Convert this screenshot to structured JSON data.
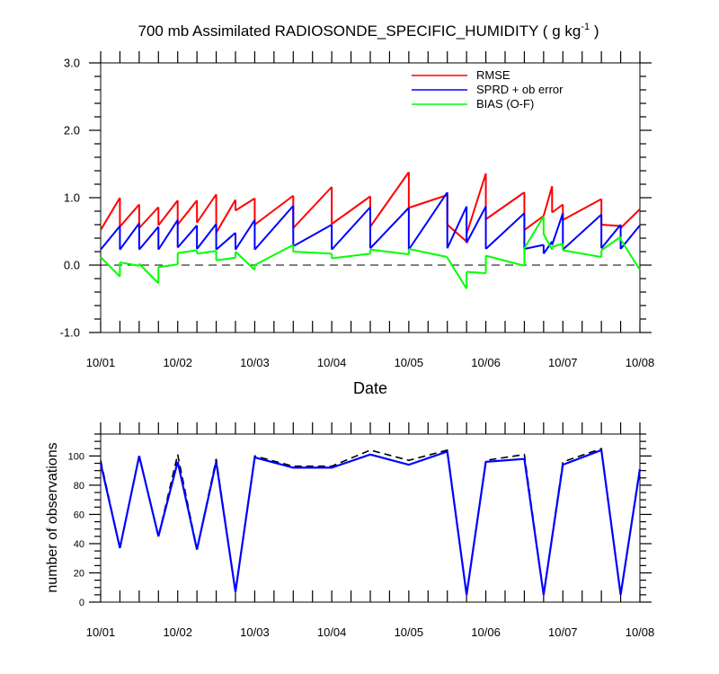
{
  "chart_data": [
    {
      "type": "line",
      "title": "700 mb Assimilated RADIOSONDE_SPECIFIC_HUMIDITY ( g kg",
      "title_super": "-1",
      "title_tail": " )",
      "xlabel": "Date",
      "ylabel": "",
      "ylim": [
        -1.0,
        3.0
      ],
      "yticks": [
        "-1.0",
        "0.0",
        "1.0",
        "2.0",
        "3.0"
      ],
      "xticks": [
        "10/01",
        "10/02",
        "10/03",
        "10/04",
        "10/05",
        "10/06",
        "10/07",
        "10/08"
      ],
      "xlim": [
        0,
        7
      ],
      "reference_line": 0.0,
      "legend": "top-right",
      "series": [
        {
          "name": "RMSE",
          "color": "#ff0000",
          "segments": [
            [
              [
                0.0,
                0.52
              ],
              [
                0.25,
                1.0
              ]
            ],
            [
              [
                0.25,
                0.57
              ],
              [
                0.5,
                0.9
              ]
            ],
            [
              [
                0.5,
                0.55
              ],
              [
                0.75,
                0.86
              ]
            ],
            [
              [
                0.75,
                0.59
              ],
              [
                1.0,
                0.96
              ]
            ],
            [
              [
                1.0,
                0.6
              ],
              [
                1.25,
                0.96
              ]
            ],
            [
              [
                1.25,
                0.63
              ],
              [
                1.5,
                1.05
              ]
            ],
            [
              [
                1.5,
                0.48
              ],
              [
                1.75,
                0.97
              ]
            ],
            [
              [
                1.75,
                0.81
              ],
              [
                2.0,
                0.99
              ]
            ],
            [
              [
                2.0,
                0.6
              ],
              [
                2.5,
                1.03
              ]
            ],
            [
              [
                2.5,
                0.55
              ],
              [
                3.0,
                1.16
              ]
            ],
            [
              [
                3.0,
                0.61
              ],
              [
                3.5,
                1.02
              ]
            ],
            [
              [
                3.5,
                0.57
              ],
              [
                4.0,
                1.38
              ]
            ],
            [
              [
                4.0,
                0.85
              ],
              [
                4.5,
                1.04
              ]
            ],
            [
              [
                4.5,
                0.6
              ],
              [
                4.75,
                0.35
              ]
            ],
            [
              [
                4.75,
                0.46
              ],
              [
                5.0,
                1.36
              ]
            ],
            [
              [
                5.0,
                0.68
              ],
              [
                5.5,
                1.08
              ]
            ],
            [
              [
                5.5,
                0.52
              ],
              [
                5.75,
                0.73
              ]
            ],
            [
              [
                5.75,
                0.73
              ],
              [
                5.86,
                1.17
              ]
            ],
            [
              [
                5.86,
                0.78
              ],
              [
                6.0,
                0.9
              ]
            ],
            [
              [
                6.0,
                0.67
              ],
              [
                6.5,
                0.98
              ]
            ],
            [
              [
                6.5,
                0.6
              ],
              [
                6.75,
                0.58
              ]
            ],
            [
              [
                6.75,
                0.55
              ],
              [
                7.0,
                0.83
              ]
            ]
          ]
        },
        {
          "name": "SPRD + ob error",
          "color": "#0000ff",
          "segments": [
            [
              [
                0.0,
                0.23
              ],
              [
                0.25,
                0.58
              ]
            ],
            [
              [
                0.25,
                0.23
              ],
              [
                0.5,
                0.62
              ]
            ],
            [
              [
                0.5,
                0.23
              ],
              [
                0.75,
                0.57
              ]
            ],
            [
              [
                0.75,
                0.23
              ],
              [
                1.0,
                0.67
              ]
            ],
            [
              [
                1.0,
                0.26
              ],
              [
                1.25,
                0.59
              ]
            ],
            [
              [
                1.25,
                0.24
              ],
              [
                1.5,
                0.61
              ]
            ],
            [
              [
                1.5,
                0.23
              ],
              [
                1.75,
                0.48
              ]
            ],
            [
              [
                1.75,
                0.23
              ],
              [
                2.0,
                0.67
              ]
            ],
            [
              [
                2.0,
                0.23
              ],
              [
                2.5,
                0.88
              ]
            ],
            [
              [
                2.5,
                0.28
              ],
              [
                3.0,
                0.6
              ]
            ],
            [
              [
                3.0,
                0.23
              ],
              [
                3.5,
                0.86
              ]
            ],
            [
              [
                3.5,
                0.25
              ],
              [
                4.0,
                0.85
              ]
            ],
            [
              [
                4.0,
                0.23
              ],
              [
                4.5,
                1.08
              ]
            ],
            [
              [
                4.5,
                0.25
              ],
              [
                4.75,
                0.87
              ]
            ],
            [
              [
                4.75,
                0.33
              ],
              [
                5.0,
                0.87
              ]
            ],
            [
              [
                5.0,
                0.24
              ],
              [
                5.5,
                0.77
              ]
            ],
            [
              [
                5.5,
                0.24
              ],
              [
                5.75,
                0.3
              ]
            ],
            [
              [
                5.75,
                0.17
              ],
              [
                5.86,
                0.35
              ]
            ],
            [
              [
                5.86,
                0.3
              ],
              [
                6.0,
                0.77
              ]
            ],
            [
              [
                6.0,
                0.23
              ],
              [
                6.5,
                0.75
              ]
            ],
            [
              [
                6.5,
                0.25
              ],
              [
                6.75,
                0.6
              ]
            ],
            [
              [
                6.75,
                0.24
              ],
              [
                7.0,
                0.59
              ]
            ]
          ]
        },
        {
          "name": "BIAS (O-F)",
          "color": "#00ff00",
          "segments": [
            [
              [
                0.0,
                0.12
              ],
              [
                0.25,
                -0.17
              ]
            ],
            [
              [
                0.25,
                0.04
              ],
              [
                0.5,
                -0.01
              ]
            ],
            [
              [
                0.5,
                0.02
              ],
              [
                0.75,
                -0.27
              ]
            ],
            [
              [
                0.75,
                -0.03
              ],
              [
                1.0,
                0.01
              ]
            ],
            [
              [
                1.0,
                0.18
              ],
              [
                1.25,
                0.22
              ]
            ],
            [
              [
                1.25,
                0.17
              ],
              [
                1.5,
                0.21
              ]
            ],
            [
              [
                1.5,
                0.07
              ],
              [
                1.75,
                0.11
              ]
            ],
            [
              [
                1.75,
                0.2
              ],
              [
                2.0,
                -0.07
              ]
            ],
            [
              [
                2.0,
                0.0
              ],
              [
                2.5,
                0.3
              ]
            ],
            [
              [
                2.5,
                0.2
              ],
              [
                3.0,
                0.17
              ]
            ],
            [
              [
                3.0,
                0.1
              ],
              [
                3.5,
                0.17
              ]
            ],
            [
              [
                3.5,
                0.23
              ],
              [
                4.0,
                0.16
              ]
            ],
            [
              [
                4.0,
                0.24
              ],
              [
                4.5,
                0.12
              ]
            ],
            [
              [
                4.5,
                0.11
              ],
              [
                4.75,
                -0.35
              ]
            ],
            [
              [
                4.75,
                -0.1
              ],
              [
                5.0,
                -0.12
              ]
            ],
            [
              [
                5.0,
                0.14
              ],
              [
                5.5,
                -0.01
              ]
            ],
            [
              [
                5.5,
                0.25
              ],
              [
                5.75,
                0.72
              ]
            ],
            [
              [
                5.75,
                0.46
              ],
              [
                5.86,
                0.23
              ]
            ],
            [
              [
                5.86,
                0.27
              ],
              [
                6.0,
                0.32
              ]
            ],
            [
              [
                6.0,
                0.22
              ],
              [
                6.5,
                0.12
              ]
            ],
            [
              [
                6.5,
                0.22
              ],
              [
                6.75,
                0.42
              ]
            ],
            [
              [
                6.75,
                0.38
              ],
              [
                7.0,
                -0.07
              ]
            ]
          ]
        }
      ]
    },
    {
      "type": "line",
      "title": "",
      "xlabel": "",
      "ylabel": "number of observations",
      "ylim": [
        0,
        115
      ],
      "yticks": [
        "0",
        "20",
        "40",
        "60",
        "80",
        "100"
      ],
      "xticks": [
        "10/01",
        "10/02",
        "10/03",
        "10/04",
        "10/05",
        "10/06",
        "10/07",
        "10/08"
      ],
      "xlim": [
        0,
        7
      ],
      "series": [
        {
          "name": "",
          "color": "#0000ff",
          "style": "solid",
          "x": [
            0.0,
            0.25,
            0.5,
            0.75,
            1.0,
            1.25,
            1.5,
            1.75,
            2.0,
            2.5,
            3.0,
            3.5,
            4.0,
            4.5,
            4.75,
            5.0,
            5.5,
            5.75,
            6.0,
            6.5,
            6.75,
            7.0
          ],
          "y": [
            95,
            37,
            100,
            45,
            96,
            36,
            96,
            7,
            99,
            92,
            92,
            101,
            94,
            103,
            5,
            96,
            98,
            5,
            94,
            104,
            5,
            91
          ]
        },
        {
          "name": "",
          "color": "#000000",
          "style": "dashed",
          "x": [
            0.0,
            0.25,
            0.5,
            0.75,
            1.0,
            1.25,
            1.5,
            1.75,
            2.0,
            2.5,
            3.0,
            3.5,
            4.0,
            4.5,
            4.75,
            5.0,
            5.5,
            5.75,
            6.0,
            6.5,
            6.75,
            7.0
          ],
          "y": [
            97,
            37,
            100,
            45,
            101,
            36,
            98,
            7,
            100,
            93,
            93,
            104,
            97,
            104,
            5,
            97,
            101,
            5,
            96,
            105,
            5,
            92
          ]
        }
      ]
    }
  ]
}
